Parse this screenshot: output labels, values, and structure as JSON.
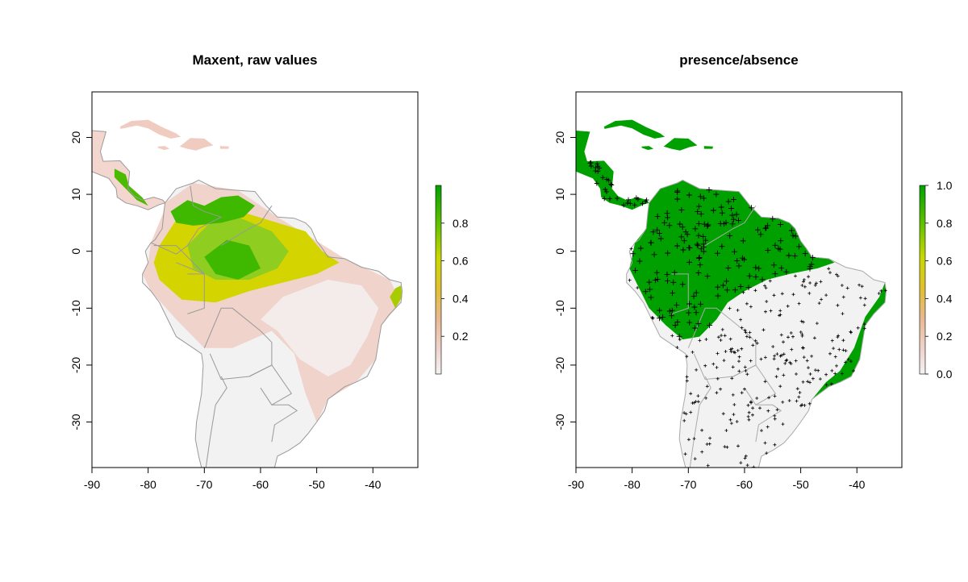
{
  "panels": [
    {
      "id": "left",
      "title": "Maxent, raw values",
      "map_type": "continuous-raster",
      "x_ticks": [
        "-90",
        "-80",
        "-70",
        "-60",
        "-50",
        "-40"
      ],
      "y_ticks": [
        "20",
        "10",
        "0",
        "-10",
        "-20",
        "-30"
      ],
      "legend": {
        "ticks": [
          "0.2",
          "0.4",
          "0.6",
          "0.8"
        ],
        "range": [
          0,
          1
        ]
      }
    },
    {
      "id": "right",
      "title": "presence/absence",
      "map_type": "binary-raster-with-points",
      "x_ticks": [
        "-90",
        "-80",
        "-70",
        "-60",
        "-50",
        "-40"
      ],
      "y_ticks": [
        "20",
        "10",
        "0",
        "-10",
        "-20",
        "-30"
      ],
      "legend": {
        "ticks": [
          "0.0",
          "0.2",
          "0.4",
          "0.6",
          "0.8",
          "1.0"
        ],
        "range": [
          0,
          1
        ]
      }
    }
  ],
  "chart_data": [
    {
      "type": "heatmap",
      "title": "Maxent, raw values",
      "xlabel": "",
      "ylabel": "",
      "xlim": [
        -90,
        -32
      ],
      "ylim": [
        -38,
        28
      ],
      "x_ticks": [
        -90,
        -80,
        -70,
        -60,
        -50,
        -40
      ],
      "y_ticks": [
        20,
        10,
        0,
        -10,
        -20,
        -30
      ],
      "color_scale": {
        "min": 0,
        "max": 1,
        "colors": [
          "#f2f2f2",
          "#f0c9c0",
          "#e0b070",
          "#e8d000",
          "#9fd000",
          "#00a000"
        ]
      },
      "legend_ticks": [
        0.2,
        0.4,
        0.6,
        0.8
      ]
    },
    {
      "type": "heatmap",
      "title": "presence/absence",
      "xlabel": "",
      "ylabel": "",
      "xlim": [
        -90,
        -32
      ],
      "ylim": [
        -38,
        28
      ],
      "x_ticks": [
        -90,
        -80,
        -70,
        -60,
        -50,
        -40
      ],
      "y_ticks": [
        20,
        10,
        0,
        -10,
        -20,
        -30
      ],
      "color_scale": {
        "min": 0,
        "max": 1,
        "colors": [
          "#f2f2f2",
          "#f0c9c0",
          "#e0b070",
          "#e8d000",
          "#9fd000",
          "#00a000"
        ]
      },
      "legend_ticks": [
        0.0,
        0.2,
        0.4,
        0.6,
        0.8,
        1.0
      ],
      "classes": {
        "absence": 0,
        "presence": 1
      }
    }
  ],
  "colors": {
    "presence_green": "#00a000",
    "background_grey": "#f2f2f2",
    "border_grey": "#999999",
    "point_black": "#000000"
  }
}
